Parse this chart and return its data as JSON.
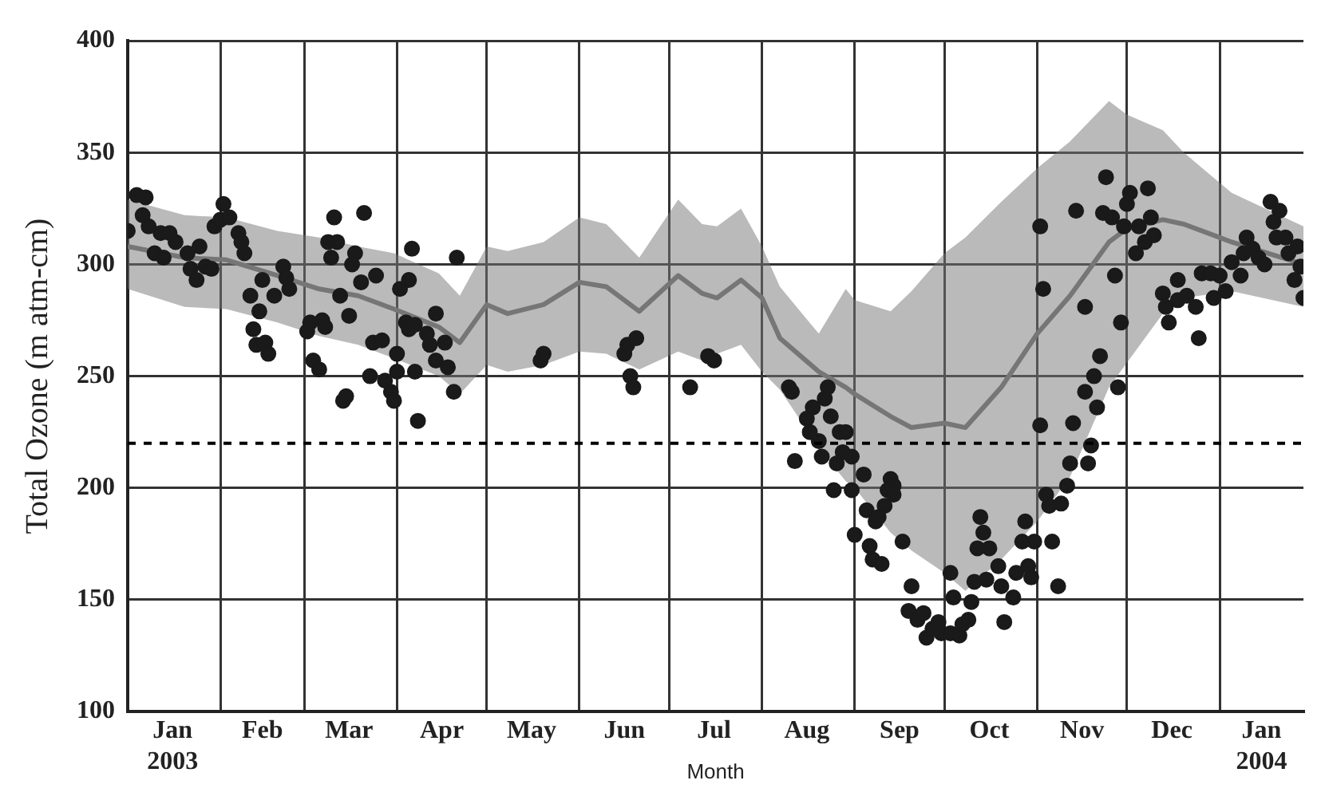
{
  "chart_data": {
    "type": "scatter",
    "xlabel": "Month",
    "ylabel": "Total Ozone (m atm-cm)",
    "xlim": [
      "2003-01-01",
      "2004-01-29"
    ],
    "ylim": [
      100,
      400
    ],
    "yticks": [
      100,
      150,
      200,
      250,
      300,
      350,
      400
    ],
    "xticks": [
      {
        "value": "2003-01-16",
        "label": "Jan\n2003"
      },
      {
        "value": "2003-02-01",
        "label": null
      },
      {
        "value": "2003-02-15",
        "label": "Feb"
      },
      {
        "value": "2003-03-01",
        "label": null
      },
      {
        "value": "2003-03-16",
        "label": "Mar"
      },
      {
        "value": "2003-04-01",
        "label": null
      },
      {
        "value": "2003-04-16",
        "label": "Apr"
      },
      {
        "value": "2003-05-01",
        "label": null
      },
      {
        "value": "2003-05-16",
        "label": "May"
      },
      {
        "value": "2003-06-01",
        "label": null
      },
      {
        "value": "2003-06-16",
        "label": "Jun"
      },
      {
        "value": "2003-07-01",
        "label": null
      },
      {
        "value": "2003-07-16",
        "label": "Jul"
      },
      {
        "value": "2003-08-01",
        "label": null
      },
      {
        "value": "2003-08-16",
        "label": "Aug"
      },
      {
        "value": "2003-09-01",
        "label": null
      },
      {
        "value": "2003-09-16",
        "label": "Sep"
      },
      {
        "value": "2003-10-01",
        "label": null
      },
      {
        "value": "2003-10-16",
        "label": "Oct"
      },
      {
        "value": "2003-11-01",
        "label": null
      },
      {
        "value": "2003-11-16",
        "label": "Nov"
      },
      {
        "value": "2003-12-01",
        "label": null
      },
      {
        "value": "2003-12-16",
        "label": "Dec"
      },
      {
        "value": "2004-01-01",
        "label": null
      },
      {
        "value": "2004-01-15",
        "label": "Jan\n2004"
      }
    ],
    "grid": true,
    "legend": false,
    "marker": "circle",
    "ref_lines": [
      {
        "axis": "y",
        "value": 220,
        "color": "#000000",
        "line_style": "dashed"
      }
    ],
    "series": [
      {
        "type": "line",
        "color": "#767676",
        "line_style": "solid",
        "marker": "none",
        "x": [
          "2003-01-01",
          "2003-01-20",
          "2003-02-03",
          "2003-02-20",
          "2003-03-06",
          "2003-03-19",
          "2003-03-31",
          "2003-04-15",
          "2003-04-22",
          "2003-05-01",
          "2003-05-08",
          "2003-05-20",
          "2003-06-01",
          "2003-06-10",
          "2003-06-21",
          "2003-07-04",
          "2003-07-12",
          "2003-07-17",
          "2003-07-25",
          "2003-08-01",
          "2003-08-07",
          "2003-08-20",
          "2003-08-29",
          "2003-09-01",
          "2003-09-13",
          "2003-09-20",
          "2003-10-01",
          "2003-10-08",
          "2003-10-20",
          "2003-11-01",
          "2003-11-12",
          "2003-11-25",
          "2003-12-01",
          "2003-12-13",
          "2003-12-20",
          "2004-01-05",
          "2004-01-29"
        ],
        "values": [
          308,
          303,
          302,
          295,
          289,
          286,
          280,
          272,
          265,
          282,
          278,
          282,
          292,
          290,
          279,
          295,
          287,
          285,
          293,
          285,
          267,
          252,
          245,
          242,
          232,
          227,
          229,
          227,
          245,
          269,
          286,
          310,
          316,
          320,
          318,
          310,
          300
        ],
        "lower": [
          289,
          281,
          280,
          274,
          268,
          264,
          258,
          250,
          242,
          255,
          252,
          255,
          261,
          260,
          253,
          261,
          257,
          260,
          264,
          252,
          244,
          218,
          203,
          200,
          180,
          172,
          162,
          154,
          168,
          185,
          205,
          245,
          256,
          278,
          285,
          288,
          281
        ],
        "upper": [
          329,
          322,
          321,
          315,
          312,
          308,
          305,
          296,
          286,
          308,
          306,
          310,
          321,
          318,
          303,
          329,
          318,
          317,
          325,
          308,
          290,
          269,
          289,
          284,
          279,
          288,
          305,
          312,
          328,
          343,
          355,
          373,
          367,
          360,
          350,
          332,
          317
        ]
      },
      {
        "color": "#1a1a1a",
        "x": [
          "2003-01-04",
          "2003-01-07",
          "2003-01-01",
          "2003-01-06",
          "2003-01-08",
          "2003-01-12",
          "2003-01-15",
          "2003-01-17",
          "2003-01-10",
          "2003-01-13",
          "2003-01-21",
          "2003-01-22",
          "2003-01-25",
          "2003-01-27",
          "2003-01-24",
          "2003-01-29",
          "2003-01-30",
          "2003-02-02",
          "2003-02-01",
          "2003-02-04",
          "2003-02-07",
          "2003-02-08",
          "2003-02-09",
          "2003-02-11",
          "2003-02-14",
          "2003-02-15",
          "2003-02-12",
          "2003-02-13",
          "2003-02-16",
          "2003-02-17",
          "2003-02-19",
          "2003-02-22",
          "2003-02-23",
          "2003-02-24",
          "2003-03-02",
          "2003-03-03",
          "2003-03-07",
          "2003-03-08",
          "2003-03-04",
          "2003-03-06",
          "2003-03-14",
          "2003-03-15",
          "2003-03-11",
          "2003-03-21",
          "2003-03-09",
          "2003-03-12",
          "2003-03-10",
          "2003-03-18",
          "2003-03-17",
          "2003-03-20",
          "2003-03-25",
          "2003-03-13",
          "2003-03-16",
          "2003-03-23",
          "2003-03-24",
          "2003-03-27",
          "2003-03-28",
          "2003-03-30",
          "2003-03-31",
          "2003-04-01",
          "2003-04-01",
          "2003-04-02",
          "2003-04-05",
          "2003-04-06",
          "2003-04-04",
          "2003-04-05",
          "2003-04-07",
          "2003-04-07",
          "2003-04-08",
          "2003-04-11",
          "2003-04-12",
          "2003-04-14",
          "2003-04-14",
          "2003-04-17",
          "2003-04-18",
          "2003-04-20",
          "2003-04-21",
          "2003-05-19",
          "2003-05-20",
          "2003-06-16",
          "2003-06-17",
          "2003-06-20",
          "2003-06-18",
          "2003-06-19",
          "2003-07-08",
          "2003-07-14",
          "2003-07-16",
          "2003-08-10",
          "2003-08-11",
          "2003-08-12",
          "2003-08-23",
          "2003-08-22",
          "2003-08-18",
          "2003-08-16",
          "2003-08-24",
          "2003-08-17",
          "2003-08-20",
          "2003-08-27",
          "2003-08-29",
          "2003-08-21",
          "2003-08-28",
          "2003-08-31",
          "2003-08-26",
          "2003-08-25",
          "2003-09-04",
          "2003-08-31",
          "2003-09-05",
          "2003-09-13",
          "2003-09-14",
          "2003-09-12",
          "2003-09-11",
          "2003-09-09",
          "2003-09-08",
          "2003-09-01",
          "2003-09-06",
          "2003-09-17",
          "2003-09-07",
          "2003-09-10",
          "2003-09-14",
          "2003-09-20",
          "2003-09-19",
          "2003-09-22",
          "2003-09-24",
          "2003-09-25",
          "2003-09-27",
          "2003-09-29",
          "2003-09-30",
          "2003-10-03",
          "2003-10-06",
          "2003-10-07",
          "2003-10-09",
          "2003-10-04",
          "2003-10-03",
          "2003-10-10",
          "2003-10-11",
          "2003-10-15",
          "2003-10-19",
          "2003-10-20",
          "2003-10-24",
          "2003-10-21",
          "2003-10-25",
          "2003-10-29",
          "2003-10-30",
          "2003-10-31",
          "2003-10-27",
          "2003-10-28",
          "2003-10-12",
          "2003-10-16",
          "2003-10-14",
          "2003-10-13",
          "2003-11-06",
          "2003-11-08",
          "2003-11-04",
          "2003-11-05",
          "2003-11-09",
          "2003-11-11",
          "2003-11-12",
          "2003-11-18",
          "2003-11-02",
          "2003-11-13",
          "2003-11-19",
          "2003-11-17",
          "2003-11-20",
          "2003-11-21",
          "2003-11-22",
          "2003-11-28",
          "2003-11-29",
          "2003-11-17",
          "2003-11-03",
          "2003-11-27",
          "2003-11-02",
          "2003-11-14",
          "2003-11-24",
          "2003-11-23",
          "2003-11-26",
          "2003-12-01",
          "2003-12-02",
          "2003-12-08",
          "2003-11-30",
          "2003-12-05",
          "2003-12-09",
          "2003-12-04",
          "2003-12-07",
          "2003-12-10",
          "2003-12-13",
          "2003-12-14",
          "2003-12-15",
          "2003-12-18",
          "2003-12-18",
          "2003-12-21",
          "2003-12-24",
          "2003-12-25",
          "2003-12-26",
          "2003-12-29",
          "2003-12-30",
          "2004-01-01",
          "2004-01-03",
          "2004-01-05",
          "2004-01-09",
          "2004-01-08",
          "2004-01-12",
          "2004-01-14",
          "2004-01-16",
          "2004-01-10",
          "2004-01-18",
          "2004-01-21",
          "2004-01-19",
          "2004-01-20",
          "2004-01-23",
          "2004-01-24",
          "2004-01-27",
          "2004-01-26",
          "2004-01-28",
          "2004-01-29"
        ],
        "values": [
          331,
          330,
          315,
          322,
          317,
          314,
          314,
          310,
          305,
          303,
          305,
          298,
          308,
          299,
          293,
          298,
          317,
          327,
          320,
          321,
          314,
          310,
          305,
          286,
          279,
          293,
          271,
          264,
          265,
          260,
          286,
          299,
          294,
          289,
          270,
          274,
          275,
          272,
          257,
          253,
          239,
          241,
          321,
          323,
          310,
          310,
          303,
          305,
          300,
          292,
          295,
          286,
          277,
          250,
          265,
          266,
          248,
          243,
          239,
          252,
          260,
          289,
          293,
          307,
          274,
          271,
          273,
          252,
          230,
          269,
          264,
          278,
          257,
          265,
          254,
          243,
          303,
          257,
          260,
          260,
          264,
          267,
          250,
          245,
          245,
          259,
          257,
          245,
          243,
          212,
          245,
          240,
          236,
          231,
          232,
          225,
          221,
          225,
          225,
          214,
          216,
          214,
          211,
          199,
          206,
          199,
          190,
          204,
          201,
          199,
          192,
          187,
          185,
          179,
          174,
          176,
          168,
          166,
          197,
          156,
          145,
          141,
          144,
          133,
          137,
          140,
          135,
          135,
          134,
          139,
          141,
          151,
          162,
          149,
          158,
          159,
          165,
          156,
          151,
          140,
          162,
          165,
          160,
          176,
          176,
          185,
          173,
          173,
          180,
          187,
          176,
          156,
          197,
          192,
          193,
          201,
          211,
          211,
          228,
          229,
          219,
          243,
          250,
          236,
          259,
          245,
          274,
          281,
          289,
          295,
          317,
          324,
          339,
          323,
          321,
          327,
          332,
          334,
          317,
          317,
          321,
          305,
          310,
          313,
          287,
          281,
          274,
          293,
          284,
          286,
          281,
          267,
          296,
          296,
          285,
          295,
          288,
          301,
          305,
          295,
          307,
          303,
          300,
          312,
          328,
          324,
          319,
          312,
          312,
          305,
          308,
          293,
          299,
          285
        ]
      }
    ]
  }
}
